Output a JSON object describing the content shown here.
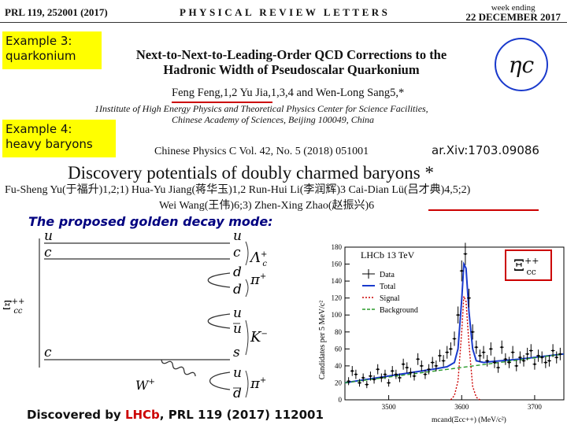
{
  "header": {
    "citation": "PRL 119, 252001 (2017)",
    "journal": "PHYSICAL REVIEW LETTERS",
    "week_ending_label": "week ending",
    "week_ending_date": "22 DECEMBER 2017"
  },
  "example3": {
    "line1": "Example 3:",
    "line2": "quarkonium"
  },
  "example4": {
    "line1": "Example 4:",
    "line2": "heavy baryons"
  },
  "paper1": {
    "title_line1": "Next-to-Next-to-Leading-Order QCD Corrections to the",
    "title_line2": "Hadronic Width of Pseudoscalar Quarkonium",
    "authors": "Feng Feng,1,2 Yu Jia,1,3,4 and Wen-Long Sang5,*",
    "affil_line1": "1Institute of High Energy Physics and Theoretical Physics Center for Science Facilities,",
    "affil_line2": "Chinese Academy of Sciences, Beijing 100049, China",
    "symbol": "ηc"
  },
  "paper2": {
    "journal": "Chinese Physics C   Vol. 42, No. 5 (2018) 051001",
    "arxiv": "ar.Xiv:1703.09086",
    "title": "Discovery potentials of doubly charmed baryons *",
    "authors_line1": "Fu-Sheng Yu(于福升)1,2;1)     Hua-Yu Jiang(蒋华玉)1,2     Run-Hui Li(李润辉)3     Cai-Dian Lü(吕才典)4,5;2)",
    "authors_line2": "Wei Wang(王伟)6;3)     Zhen-Xing Zhao(赵振兴)6"
  },
  "decay": {
    "heading": "The proposed golden decay mode:",
    "initial": "Ξcc++",
    "top_quarks": [
      "u",
      "c"
    ],
    "bottom_quark": "c",
    "right_quarks": [
      "u",
      "c",
      "d",
      "d",
      "u",
      "u",
      "s",
      "u",
      "d"
    ],
    "products": [
      "Λc+",
      "π+",
      "K−",
      "π+"
    ],
    "boson": "W+"
  },
  "plot": {
    "legend_title": "LHCb 13 TeV",
    "legend_items": [
      "Data",
      "Total",
      "Signal",
      "Background"
    ],
    "particle_label": "Ξcc++",
    "ylabel": "Candidates per 5 MeV/c²",
    "xlabel": "mcand(Ξcc++) (MeV/c²)",
    "colors": {
      "data": "#000000",
      "total": "#1a3acc",
      "signal": "#cc0000",
      "background": "#2a9a2a"
    }
  },
  "chart_data": {
    "type": "scatter",
    "title": "LHCb 13 TeV",
    "xlabel": "mcand(Ξcc++) (MeV/c²)",
    "ylabel": "Candidates per 5 MeV/c²",
    "xlim": [
      3440,
      3740
    ],
    "ylim": [
      0,
      180
    ],
    "xticks": [
      3500,
      3600,
      3700
    ],
    "yticks": [
      0,
      20,
      40,
      60,
      80,
      100,
      120,
      140,
      160,
      180
    ],
    "series": [
      {
        "name": "Data",
        "type": "scatter",
        "x": [
          3445,
          3450,
          3455,
          3460,
          3465,
          3470,
          3475,
          3480,
          3485,
          3490,
          3495,
          3500,
          3505,
          3510,
          3515,
          3520,
          3525,
          3530,
          3535,
          3540,
          3545,
          3550,
          3555,
          3560,
          3565,
          3570,
          3575,
          3580,
          3585,
          3590,
          3595,
          3600,
          3605,
          3610,
          3615,
          3620,
          3625,
          3630,
          3635,
          3640,
          3645,
          3650,
          3655,
          3660,
          3665,
          3670,
          3675,
          3680,
          3685,
          3690,
          3695,
          3700,
          3705,
          3710,
          3715,
          3720,
          3725,
          3730,
          3735
        ],
        "y": [
          22,
          34,
          30,
          20,
          26,
          18,
          28,
          24,
          36,
          26,
          30,
          20,
          34,
          30,
          26,
          42,
          38,
          32,
          28,
          48,
          40,
          30,
          36,
          44,
          40,
          52,
          46,
          56,
          60,
          72,
          100,
          152,
          172,
          120,
          80,
          62,
          52,
          56,
          46,
          60,
          44,
          38,
          62,
          48,
          44,
          56,
          40,
          50,
          46,
          54,
          58,
          42,
          52,
          50,
          44,
          46,
          58,
          50,
          54
        ]
      },
      {
        "name": "Total",
        "type": "line",
        "x": [
          3440,
          3500,
          3560,
          3580,
          3590,
          3595,
          3600,
          3603,
          3606,
          3610,
          3615,
          3620,
          3630,
          3640,
          3680,
          3740
        ],
        "y": [
          20,
          28,
          36,
          39,
          44,
          60,
          118,
          160,
          155,
          104,
          60,
          46,
          44,
          45,
          48,
          54
        ]
      },
      {
        "name": "Signal",
        "type": "line",
        "x": [
          3585,
          3590,
          3595,
          3600,
          3603,
          3606,
          3610,
          3615,
          3620,
          3625
        ],
        "y": [
          0,
          5,
          22,
          80,
          122,
          116,
          66,
          16,
          3,
          0
        ]
      },
      {
        "name": "Background",
        "type": "line",
        "x": [
          3440,
          3740
        ],
        "y": [
          20,
          54
        ]
      }
    ]
  }
}
